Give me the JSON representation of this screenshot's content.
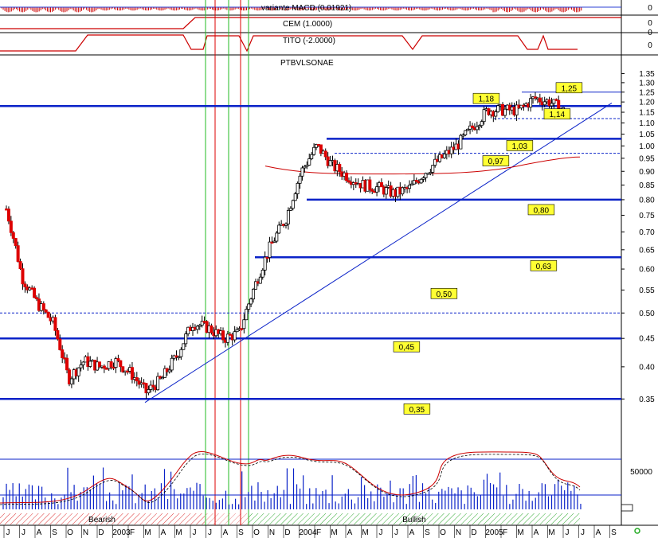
{
  "panels": {
    "macd": {
      "title": "variante MACD (0.01921)",
      "axis_value": "0"
    },
    "cem": {
      "title": "CEM (1.0000)",
      "axis_values": [
        "0",
        "0"
      ]
    },
    "tito": {
      "title": "TITO (-2.0000)",
      "axis_value": "0"
    },
    "main": {
      "title": "PTBVLSONAE"
    },
    "volume": {
      "axis_label": "50000"
    }
  },
  "price_axis": {
    "ticks": [
      "1.35",
      "1.30",
      "1.25",
      "1.20",
      "1.15",
      "1.10",
      "1.05",
      "1.00",
      "0.95",
      "0.90",
      "0.85",
      "0.80",
      "0.75",
      "0.70",
      "0.65",
      "0.60",
      "0.55",
      "0.50",
      "0.45",
      "0.40",
      "0.35"
    ]
  },
  "time_axis": {
    "labels": [
      "J",
      "J",
      "A",
      "S",
      "O",
      "N",
      "D",
      "2003",
      "F",
      "M",
      "A",
      "M",
      "J",
      "J",
      "A",
      "S",
      "O",
      "N",
      "D",
      "2004",
      "F",
      "M",
      "A",
      "M",
      "J",
      "J",
      "A",
      "S",
      "O",
      "N",
      "D",
      "2005",
      "F",
      "M",
      "A",
      "M",
      "J",
      "J",
      "A",
      "S"
    ]
  },
  "trend_labels": {
    "bearish": "Bearish",
    "bullish": "Bullish"
  },
  "chart_data": {
    "type": "candlestick",
    "title": "PTBVLSONAE",
    "ylim": [
      0.3,
      1.37
    ],
    "x_range": [
      "2002-06",
      "2005-09"
    ],
    "support_resistance_levels": [
      {
        "value": 1.18,
        "label": "1,18"
      },
      {
        "value": 1.03,
        "label": "1,03"
      },
      {
        "value": 0.8,
        "label": "0,80"
      },
      {
        "value": 0.63,
        "label": "0,63"
      },
      {
        "value": 0.45,
        "label": "0,45"
      },
      {
        "value": 0.35,
        "label": "0,35"
      }
    ],
    "annotations": [
      {
        "value": 1.25,
        "label": "1,25"
      },
      {
        "value": 1.14,
        "label": "1,14"
      },
      {
        "value": 0.97,
        "label": "0,97"
      },
      {
        "value": 0.5,
        "label": "0,50"
      }
    ],
    "dotted_levels": [
      1.12,
      0.97,
      0.5
    ],
    "trendline": {
      "from": [
        "2003-03",
        0.345
      ],
      "to": [
        "2005-07",
        1.19
      ]
    },
    "vertical_lines": {
      "green": [
        "2003-07",
        "2003-09",
        "2003-10"
      ],
      "red": [
        "2003-08",
        "2003-09"
      ]
    },
    "close_path": [
      [
        "2002-06",
        0.77
      ],
      [
        "2002-07",
        0.58
      ],
      [
        "2002-08",
        0.52
      ],
      [
        "2002-09",
        0.48
      ],
      [
        "2002-10",
        0.38
      ],
      [
        "2002-11",
        0.41
      ],
      [
        "2002-12",
        0.4
      ],
      [
        "2003-01",
        0.41
      ],
      [
        "2003-02",
        0.39
      ],
      [
        "2003-03",
        0.36
      ],
      [
        "2003-04",
        0.38
      ],
      [
        "2003-05",
        0.42
      ],
      [
        "2003-06",
        0.48
      ],
      [
        "2003-07",
        0.47
      ],
      [
        "2003-08",
        0.45
      ],
      [
        "2003-09",
        0.46
      ],
      [
        "2003-10",
        0.56
      ],
      [
        "2003-11",
        0.66
      ],
      [
        "2003-12",
        0.74
      ],
      [
        "2004-01",
        0.9
      ],
      [
        "2004-02",
        1.0
      ],
      [
        "2004-03",
        0.92
      ],
      [
        "2004-04",
        0.88
      ],
      [
        "2004-05",
        0.85
      ],
      [
        "2004-06",
        0.84
      ],
      [
        "2004-07",
        0.82
      ],
      [
        "2004-08",
        0.84
      ],
      [
        "2004-09",
        0.9
      ],
      [
        "2004-10",
        0.95
      ],
      [
        "2004-11",
        1.0
      ],
      [
        "2004-12",
        1.08
      ],
      [
        "2005-01",
        1.16
      ],
      [
        "2005-02",
        1.16
      ],
      [
        "2005-03",
        1.16
      ],
      [
        "2005-04",
        1.22
      ],
      [
        "2005-05",
        1.2
      ],
      [
        "2005-06",
        1.15
      ]
    ]
  }
}
